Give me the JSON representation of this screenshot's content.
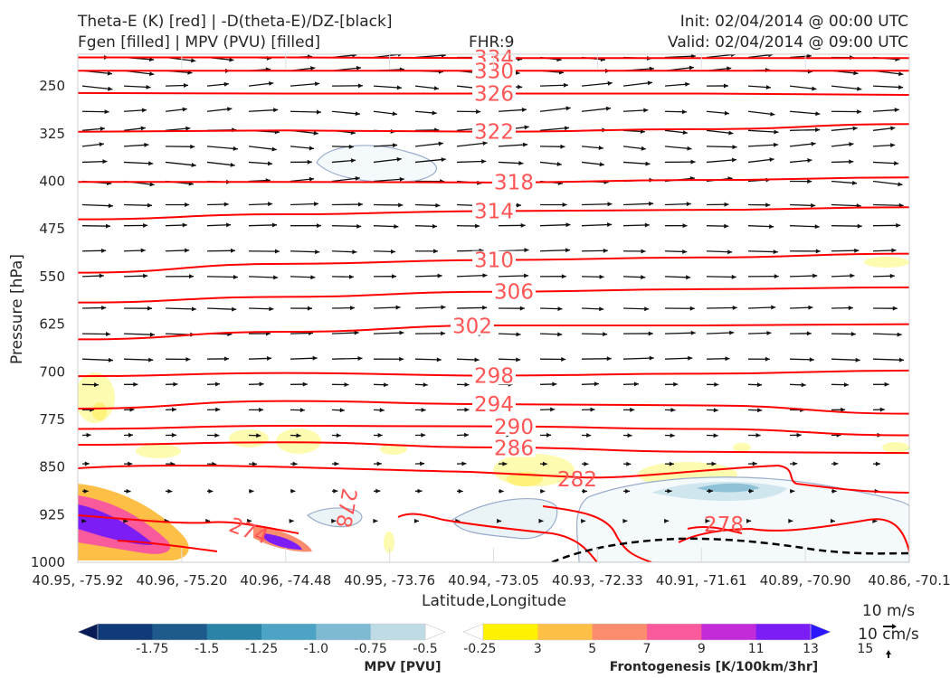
{
  "header": {
    "title_left_1": "Theta-E (K) [red] | -D(theta-E)/DZ-[black]",
    "title_left_2": "Fgen [filled] | MPV (PVU) [filled]",
    "fhr": "FHR:9",
    "init": "Init: 02/04/2014 @ 00:00 UTC",
    "valid": "Valid: 02/04/2014 @ 09:00 UTC"
  },
  "chart_data": {
    "type": "cross-section",
    "xlabel": "Latitude,Longitude",
    "ylabel": "Pressure [hPa]",
    "x_ticks": [
      "40.95, -75.92",
      "40.96, -75.20",
      "40.96, -74.48",
      "40.95, -73.76",
      "40.94, -73.05",
      "40.93, -72.33",
      "40.91, -71.61",
      "40.89, -70.90",
      "40.86, -70.1"
    ],
    "y_ticks": [
      250,
      325,
      400,
      475,
      550,
      625,
      700,
      775,
      850,
      925,
      1000
    ],
    "ylim": [
      200,
      1000
    ],
    "theta_e_contours": [
      {
        "value": 334,
        "label": "334",
        "p": [
          205,
          205,
          206,
          206,
          206
        ]
      },
      {
        "value": 330,
        "label": "330",
        "p": [
          226,
          226,
          226,
          226,
          226
        ]
      },
      {
        "value": 326,
        "label": "326",
        "p": [
          261,
          262,
          262,
          262,
          264
        ]
      },
      {
        "value": 322,
        "label": "322",
        "p": [
          322,
          320,
          322,
          318,
          310
        ]
      },
      {
        "value": 318,
        "label": "318",
        "p": [
          401,
          401,
          402,
          398,
          394
        ]
      },
      {
        "value": 314,
        "label": "314",
        "p": [
          460,
          452,
          447,
          445,
          441
        ]
      },
      {
        "value": 310,
        "label": "310",
        "p": [
          544,
          530,
          524,
          520,
          514
        ]
      },
      {
        "value": 306,
        "label": "306",
        "p": [
          591,
          582,
          574,
          570,
          567
        ]
      },
      {
        "value": 302,
        "label": "302",
        "p": [
          649,
          637,
          627,
          627,
          625
        ]
      },
      {
        "value": 298,
        "label": "298",
        "p": [
          707,
          702,
          706,
          703,
          698
        ]
      },
      {
        "value": 294,
        "label": "294",
        "p": [
          758,
          746,
          751,
          753,
          766
        ]
      },
      {
        "value": 290,
        "label": "290",
        "p": [
          790,
          785,
          786,
          790,
          800
        ]
      },
      {
        "value": 286,
        "label": "286",
        "p": [
          815,
          811,
          819,
          826,
          828
        ]
      }
    ],
    "low_level_labels": [
      "282",
      "278",
      "274",
      "278"
    ],
    "wind_scale": {
      "horizontal": "10 m/s",
      "vertical": "10 cm/s"
    },
    "mpv_colorbar": {
      "title": "MPV [PVU]",
      "ticks": [
        "-1.75",
        "-1.5",
        "-1.25",
        "-1.0",
        "-0.75",
        "-0.5",
        "-0.25"
      ],
      "colors": [
        "#081d58",
        "#103a78",
        "#1f5a8c",
        "#2b83a8",
        "#4ca3c4",
        "#7fbad3",
        "#bfdbe6",
        "#ffffff"
      ]
    },
    "fgen_colorbar": {
      "title": "Frontogenesis [K/100km/3hr]",
      "ticks": [
        "3",
        "5",
        "7",
        "9",
        "11",
        "13",
        "15"
      ],
      "colors": [
        "#ffffff",
        "#fff200",
        "#fdbf45",
        "#fb8c6e",
        "#f95a9b",
        "#c32bd8",
        "#7c1df5",
        "#2b17ff"
      ]
    },
    "colors": {
      "theta_e": "#ff0000",
      "theta_label": "#ff5555",
      "wind": "#111111",
      "mpv_edge": "#9aaccc"
    }
  }
}
